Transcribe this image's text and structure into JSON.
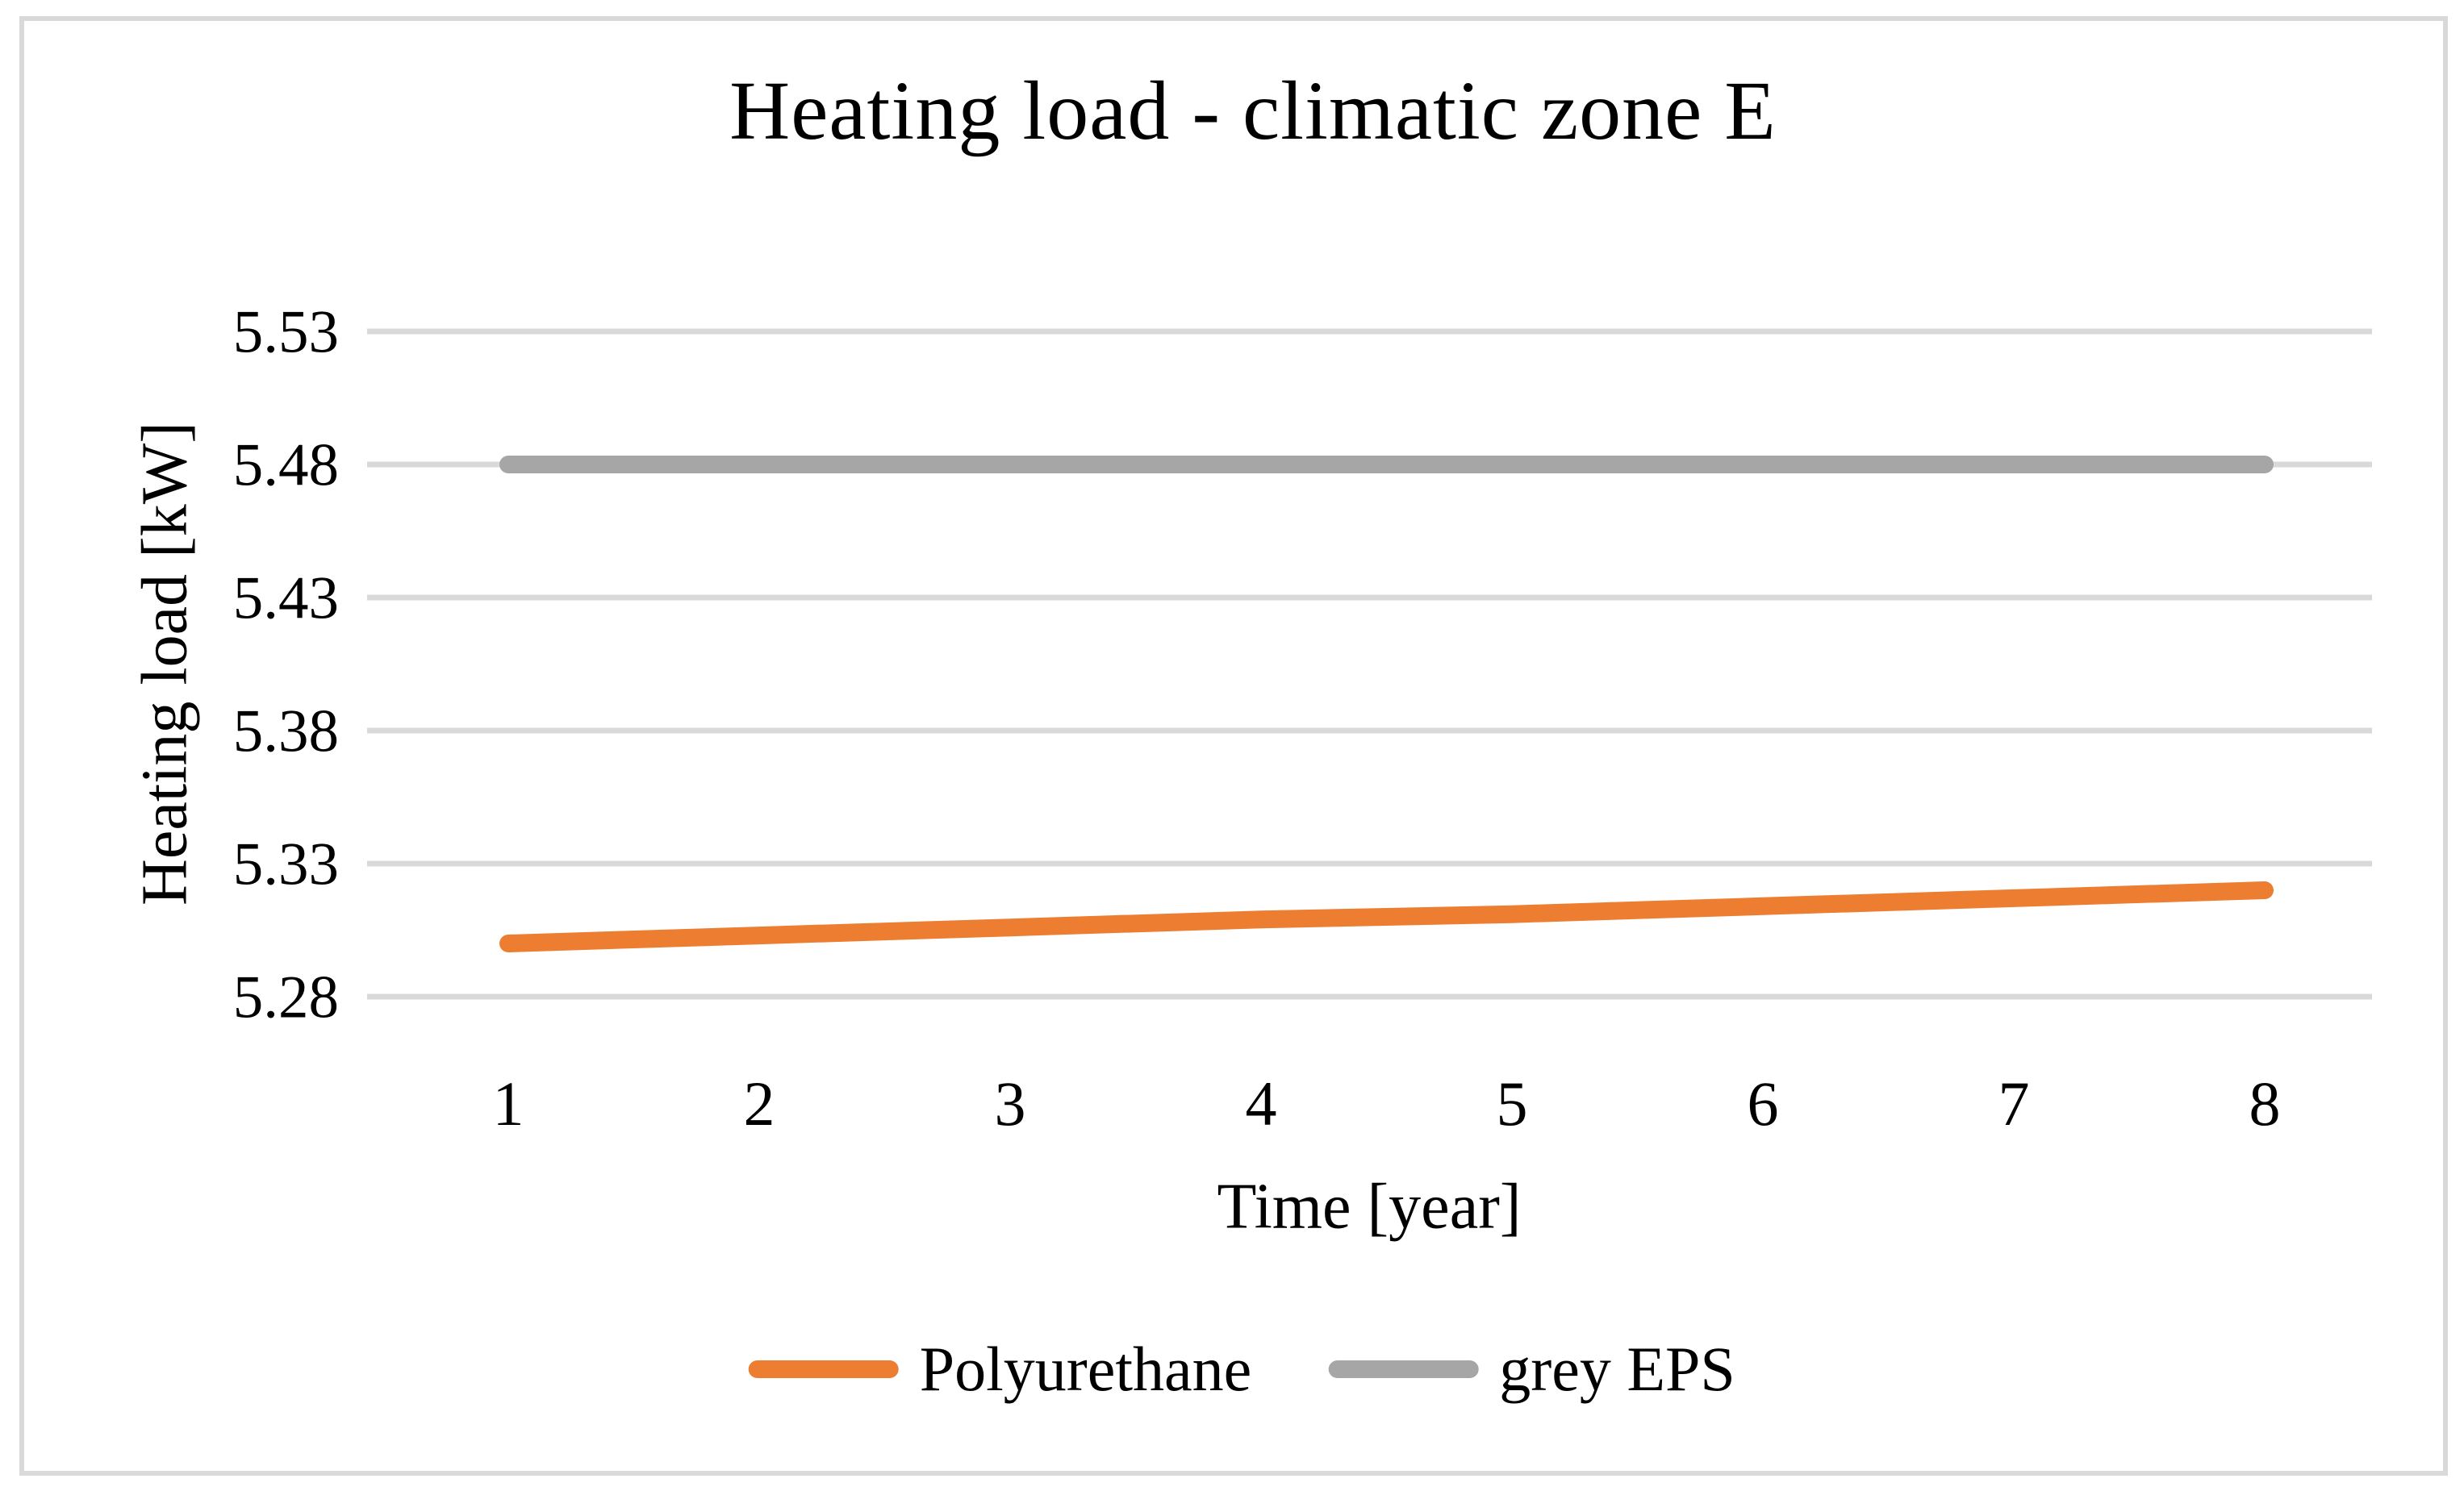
{
  "figure": {
    "background_color": "#FFFFFF",
    "border_color": "#D9D9D9"
  },
  "chart_data": {
    "type": "line",
    "title": "Heating load - climatic zone E",
    "xlabel": "Time [year]",
    "ylabel": "Heating load [kW]",
    "categories": [
      1,
      2,
      3,
      4,
      5,
      6,
      7,
      8
    ],
    "x_tick_labels": [
      "1",
      "2",
      "3",
      "4",
      "5",
      "6",
      "7",
      "8"
    ],
    "y_tick_labels": [
      "5.28",
      "5.33",
      "5.38",
      "5.43",
      "5.48",
      "5.53"
    ],
    "y_ticks": [
      5.28,
      5.33,
      5.38,
      5.43,
      5.48,
      5.53
    ],
    "ylim": [
      5.28,
      5.53
    ],
    "grid": "horizontal-only",
    "gridline_color": "#D9D9D9",
    "text_color": "#000000",
    "legend_position": "bottom",
    "series": [
      {
        "name": "Polyurethane",
        "color": "#ED7D31",
        "values": [
          5.3,
          5.303,
          5.306,
          5.309,
          5.311,
          5.314,
          5.317,
          5.32
        ]
      },
      {
        "name": "grey EPS",
        "color": "#A6A6A6",
        "values": [
          5.48,
          5.48,
          5.48,
          5.48,
          5.48,
          5.48,
          5.48,
          5.48
        ]
      }
    ]
  }
}
